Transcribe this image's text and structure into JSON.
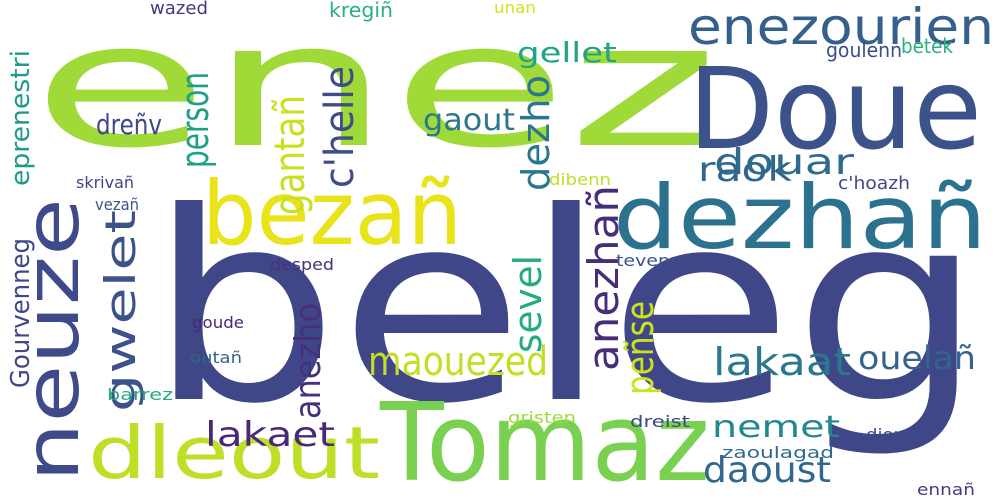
{
  "words": [
    {
      "text": "beleg",
      "color": "#3f4788"
    },
    {
      "text": "enez",
      "color": "#a0da39"
    },
    {
      "text": "Tomaz",
      "color": "#7ad151"
    },
    {
      "text": "Doue",
      "color": "#3b528b"
    },
    {
      "text": "neuze",
      "color": "#3e4a89"
    },
    {
      "text": "bezañ",
      "color": "#e8e419"
    },
    {
      "text": "dezhañ",
      "color": "#2c728e"
    },
    {
      "text": "dleout",
      "color": "#bddf26"
    },
    {
      "text": "enezourien",
      "color": "#355f8d"
    },
    {
      "text": "gwelet",
      "color": "#3b528b"
    },
    {
      "text": "maouezed",
      "color": "#c2df23"
    },
    {
      "text": "lakaat",
      "color": "#2a788e"
    },
    {
      "text": "person",
      "color": "#1f9e89"
    },
    {
      "text": "c'helle",
      "color": "#3e4c8a"
    },
    {
      "text": "gantañ",
      "color": "#c8e020"
    },
    {
      "text": "dezho",
      "color": "#2a768e"
    },
    {
      "text": "douar",
      "color": "#2f6b8e"
    },
    {
      "text": "raok",
      "color": "#32658e"
    },
    {
      "text": "sevel",
      "color": "#25ab82"
    },
    {
      "text": "anezhañ",
      "color": "#472c7a"
    },
    {
      "text": "peñse",
      "color": "#cde11d"
    },
    {
      "text": "anezho",
      "color": "#46307e"
    },
    {
      "text": "lakaet",
      "color": "#482979"
    },
    {
      "text": "nemet",
      "color": "#23888e"
    },
    {
      "text": "daoust",
      "color": "#31678e"
    },
    {
      "text": "ouelañ",
      "color": "#32648e"
    },
    {
      "text": "gaout",
      "color": "#2a788e"
    },
    {
      "text": "gellet",
      "color": "#20a386"
    },
    {
      "text": "dreñv",
      "color": "#3f4889"
    },
    {
      "text": "betek",
      "color": "#2ab07f"
    },
    {
      "text": "goulenn",
      "color": "#3e4c8a"
    },
    {
      "text": "eprenestri",
      "color": "#1e9b8a"
    },
    {
      "text": "Gourvenneg",
      "color": "#3f4889"
    },
    {
      "text": "skrivañ",
      "color": "#414487"
    },
    {
      "text": "vezañ",
      "color": "#39568c"
    },
    {
      "text": "wazed",
      "color": "#443a83"
    },
    {
      "text": "kregiñ",
      "color": "#2ab07f"
    },
    {
      "text": "unan",
      "color": "#d2e21b"
    },
    {
      "text": "dibenn",
      "color": "#bddf26"
    },
    {
      "text": "c'hoazh",
      "color": "#3e4989"
    },
    {
      "text": "desped",
      "color": "#46337f"
    },
    {
      "text": "tevenn",
      "color": "#3b528b"
    },
    {
      "text": "goude",
      "color": "#482878"
    },
    {
      "text": "outañ",
      "color": "#33638d"
    },
    {
      "text": "barrez",
      "color": "#25ab82"
    },
    {
      "text": "gristen",
      "color": "#a0da39"
    },
    {
      "text": "dreist",
      "color": "#3f4889"
    },
    {
      "text": "zaoulagad",
      "color": "#31688e"
    },
    {
      "text": "diouzh",
      "color": "#3f4889"
    },
    {
      "text": "ennañ",
      "color": "#453882"
    }
  ]
}
